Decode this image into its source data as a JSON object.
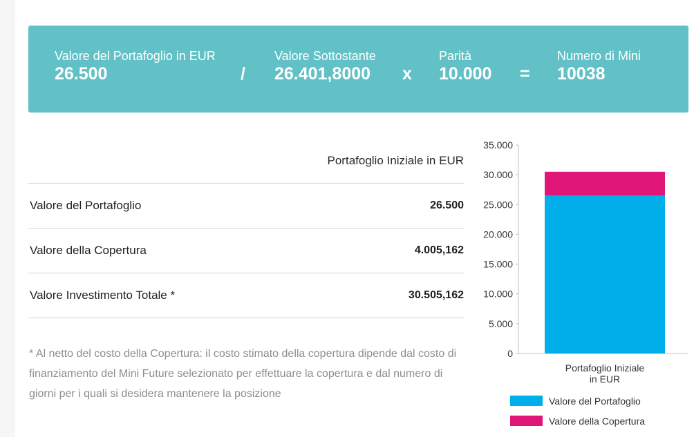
{
  "banner": {
    "portfolio_label": "Valore del Portafoglio in EUR",
    "portfolio_value": "26.500",
    "op_divide": "/",
    "underlying_label": "Valore Sottostante",
    "underlying_value": "26.401,8000",
    "op_multiply": "x",
    "parity_label": "Parità",
    "parity_value": "10.000",
    "op_equals": "=",
    "minis_label": "Numero di Mini",
    "minis_value": "10038"
  },
  "table": {
    "header": "Portafoglio Iniziale in EUR",
    "rows": [
      {
        "label": "Valore del Portafoglio",
        "value": "26.500"
      },
      {
        "label": "Valore della Copertura",
        "value": "4.005,162"
      },
      {
        "label": "Valore Investimento Totale *",
        "value": "30.505,162"
      }
    ]
  },
  "footnote": "* Al netto del costo della Copertura: il costo stimato della copertura dipende dal costo di finanziamento del Mini Future selezionato per effettuare la copertura e dal numero di giorni per i quali si desidera mantenere la posizione",
  "chart_data": {
    "type": "bar",
    "stacked": true,
    "categories": [
      "Portafoglio Iniziale in EUR"
    ],
    "category_lines": [
      "Portafoglio Iniziale",
      "in EUR"
    ],
    "series": [
      {
        "name": "Valore del Portafoglio",
        "values": [
          26500
        ],
        "color": "#00aee9"
      },
      {
        "name": "Valore della Copertura",
        "values": [
          4005.162
        ],
        "color": "#df1577"
      }
    ],
    "ylim": [
      0,
      35000
    ],
    "yticks": [
      0,
      5000,
      10000,
      15000,
      20000,
      25000,
      30000,
      35000
    ],
    "ytick_labels": [
      "0",
      "5.000",
      "10.000",
      "15.000",
      "20.000",
      "25.000",
      "30.000",
      "35.000"
    ],
    "legend_position": "bottom",
    "title": "",
    "xlabel": "",
    "ylabel": ""
  }
}
